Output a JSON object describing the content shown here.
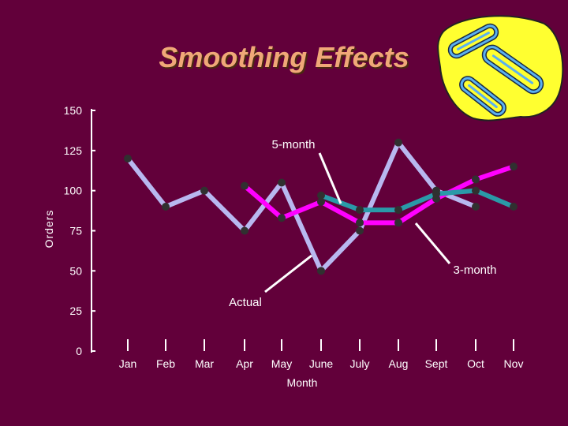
{
  "slide": {
    "title": "Smoothing Effects"
  },
  "colors": {
    "background": "#62003a",
    "title": "#f0a878",
    "actual": "#b8b8f0",
    "three_month": "#ff00ff",
    "five_month": "#2a9aa8",
    "marker": "#303030",
    "axis": "#ffffff",
    "clip_art_blob": "#ffff30"
  },
  "clip_art": {
    "icon": "paperclips-icon"
  },
  "chart_data": {
    "type": "line",
    "xlabel": "Month",
    "ylabel": "Orders",
    "ylim": [
      0,
      150
    ],
    "yticks": [
      0,
      25,
      50,
      75,
      100,
      125,
      150
    ],
    "grid": false,
    "categories": [
      "Jan",
      "Feb",
      "Mar",
      "Apr",
      "May",
      "June",
      "July",
      "Aug",
      "Sept",
      "Oct",
      "Nov"
    ],
    "series": [
      {
        "name": "Actual",
        "color": "#b8b8f0",
        "values": [
          120,
          90,
          100,
          75,
          105,
          50,
          75,
          130,
          100,
          90,
          null
        ]
      },
      {
        "name": "3-month",
        "color": "#ff00ff",
        "values": [
          null,
          null,
          null,
          103,
          83,
          93,
          80,
          80,
          95,
          107,
          115
        ]
      },
      {
        "name": "5-month",
        "color": "#2a9aa8",
        "values": [
          null,
          null,
          null,
          null,
          null,
          97,
          88,
          88,
          98,
          100,
          90
        ]
      }
    ],
    "annotations": [
      {
        "text": "5-month",
        "series": "5-month"
      },
      {
        "text": "3-month",
        "series": "3-month"
      },
      {
        "text": "Actual",
        "series": "Actual"
      }
    ]
  }
}
